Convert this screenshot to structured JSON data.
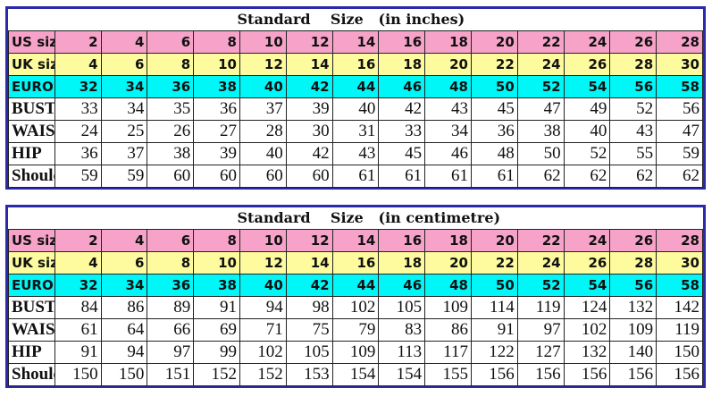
{
  "colors": {
    "us": "#f7a3c9",
    "uk": "#fdfb9e",
    "europe": "#00f7f7",
    "border": "#2a2aa8"
  },
  "tables": [
    {
      "title": "Standard    Size   (in inches)",
      "rows": [
        {
          "label": "US size no.",
          "kind": "us",
          "values": [
            2,
            4,
            6,
            8,
            10,
            12,
            14,
            16,
            18,
            20,
            22,
            24,
            26,
            28
          ]
        },
        {
          "label": "UK size no.",
          "kind": "uk",
          "values": [
            4,
            6,
            8,
            10,
            12,
            14,
            16,
            18,
            20,
            22,
            24,
            26,
            28,
            30
          ]
        },
        {
          "label": "EUROPE size no.",
          "kind": "eu",
          "values": [
            32,
            34,
            36,
            38,
            40,
            42,
            44,
            46,
            48,
            50,
            52,
            54,
            56,
            58
          ]
        },
        {
          "label": "BUST",
          "kind": "meas",
          "values": [
            33,
            34,
            35,
            36,
            37,
            39,
            40,
            42,
            43,
            45,
            47,
            49,
            52,
            56
          ]
        },
        {
          "label": "WAIST",
          "kind": "meas",
          "values": [
            24,
            25,
            26,
            27,
            28,
            30,
            31,
            33,
            34,
            36,
            38,
            40,
            43,
            47
          ]
        },
        {
          "label": "HIP",
          "kind": "meas",
          "values": [
            36,
            37,
            38,
            39,
            40,
            42,
            43,
            45,
            46,
            48,
            50,
            52,
            55,
            59
          ]
        },
        {
          "label": "Shoulder to Floor",
          "kind": "meas",
          "values": [
            59,
            59,
            60,
            60,
            60,
            60,
            61,
            61,
            61,
            61,
            62,
            62,
            62,
            62
          ]
        }
      ]
    },
    {
      "title": "Standard    Size   (in centimetre)",
      "rows": [
        {
          "label": "US size no.",
          "kind": "us",
          "values": [
            2,
            4,
            6,
            8,
            10,
            12,
            14,
            16,
            18,
            20,
            22,
            24,
            26,
            28
          ]
        },
        {
          "label": "UK size no.",
          "kind": "uk",
          "values": [
            4,
            6,
            8,
            10,
            12,
            14,
            16,
            18,
            20,
            22,
            24,
            26,
            28,
            30
          ]
        },
        {
          "label": "EUROPE size no.",
          "kind": "eu",
          "values": [
            32,
            34,
            36,
            38,
            40,
            42,
            44,
            46,
            48,
            50,
            52,
            54,
            56,
            58
          ]
        },
        {
          "label": "BUST",
          "kind": "meas",
          "values": [
            84,
            86,
            89,
            91,
            94,
            98,
            102,
            105,
            109,
            114,
            119,
            124,
            132,
            142
          ]
        },
        {
          "label": "WAIST",
          "kind": "meas",
          "values": [
            61,
            64,
            66,
            69,
            71,
            75,
            79,
            83,
            86,
            91,
            97,
            102,
            109,
            119
          ]
        },
        {
          "label": "HIP",
          "kind": "meas",
          "values": [
            91,
            94,
            97,
            99,
            102,
            105,
            109,
            113,
            117,
            122,
            127,
            132,
            140,
            150
          ]
        },
        {
          "label": "Shoulder to Floor",
          "kind": "meas",
          "values": [
            150,
            150,
            151,
            152,
            152,
            153,
            154,
            154,
            155,
            156,
            156,
            156,
            156,
            156
          ]
        }
      ]
    }
  ]
}
